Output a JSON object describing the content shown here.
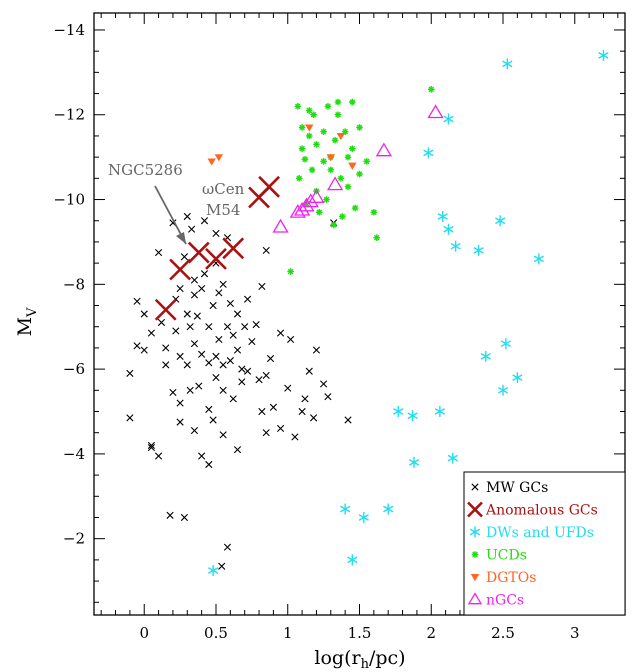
{
  "chart_data": {
    "type": "scatter",
    "xlabel": "log(r_h/pc)",
    "ylabel": "M_V",
    "xlim": [
      -0.35,
      3.35
    ],
    "ylim": [
      -0.2,
      -14.4
    ],
    "xticks": [
      0,
      0.5,
      1,
      1.5,
      2,
      2.5,
      3
    ],
    "xtick_labels": [
      "0",
      "0.5",
      "1",
      "1.5",
      "2",
      "2.5",
      "3"
    ],
    "yticks": [
      -2,
      -4,
      -6,
      -8,
      -10,
      -12,
      -14
    ],
    "ytick_labels": [
      "−2",
      "−4",
      "−6",
      "−8",
      "−10",
      "−12",
      "−14"
    ],
    "legend_position": "bottom-right",
    "colors": {
      "mw": "#000000",
      "anomalous": "#aa1111",
      "dw": "#22ddee",
      "ucd": "#22dd11",
      "dgto": "#ff6622",
      "ngc": "#ee22ee",
      "annotation": "#666666"
    },
    "series": [
      {
        "name": "MW GCs",
        "marker": "x",
        "points": [
          [
            -0.1,
            -4.85
          ],
          [
            -0.1,
            -5.9
          ],
          [
            -0.05,
            -6.55
          ],
          [
            0.0,
            -6.45
          ],
          [
            -0.05,
            -7.6
          ],
          [
            0.0,
            -7.3
          ],
          [
            0.05,
            -4.15
          ],
          [
            0.05,
            -4.2
          ],
          [
            0.05,
            -6.85
          ],
          [
            0.1,
            -3.95
          ],
          [
            0.1,
            -8.75
          ],
          [
            0.12,
            -7.1
          ],
          [
            0.15,
            -6.1
          ],
          [
            0.15,
            -6.5
          ],
          [
            0.18,
            -2.55
          ],
          [
            0.2,
            -5.45
          ],
          [
            0.2,
            -9.45
          ],
          [
            0.22,
            -6.9
          ],
          [
            0.22,
            -7.65
          ],
          [
            0.25,
            -4.75
          ],
          [
            0.25,
            -5.2
          ],
          [
            0.25,
            -6.3
          ],
          [
            0.25,
            -7.9
          ],
          [
            0.28,
            -2.5
          ],
          [
            0.28,
            -8.65
          ],
          [
            0.3,
            -6.1
          ],
          [
            0.3,
            -7.3
          ],
          [
            0.3,
            -9.6
          ],
          [
            0.32,
            -5.5
          ],
          [
            0.32,
            -7.0
          ],
          [
            0.33,
            -9.3
          ],
          [
            0.35,
            -4.55
          ],
          [
            0.35,
            -6.6
          ],
          [
            0.35,
            -7.75
          ],
          [
            0.35,
            -8.1
          ],
          [
            0.37,
            -7.25
          ],
          [
            0.38,
            -5.6
          ],
          [
            0.4,
            -3.95
          ],
          [
            0.4,
            -6.35
          ],
          [
            0.4,
            -7.9
          ],
          [
            0.42,
            -8.25
          ],
          [
            0.42,
            -9.5
          ],
          [
            0.45,
            -3.75
          ],
          [
            0.45,
            -5.05
          ],
          [
            0.45,
            -6.15
          ],
          [
            0.45,
            -7.0
          ],
          [
            0.48,
            -4.8
          ],
          [
            0.48,
            -7.5
          ],
          [
            0.5,
            -5.8
          ],
          [
            0.5,
            -6.3
          ],
          [
            0.5,
            -8.5
          ],
          [
            0.5,
            -9.2
          ],
          [
            0.52,
            -6.7
          ],
          [
            0.52,
            -7.8
          ],
          [
            0.54,
            -1.35
          ],
          [
            0.55,
            -4.45
          ],
          [
            0.55,
            -5.5
          ],
          [
            0.55,
            -6.1
          ],
          [
            0.55,
            -8.0
          ],
          [
            0.58,
            -1.8
          ],
          [
            0.58,
            -7.0
          ],
          [
            0.58,
            -9.1
          ],
          [
            0.6,
            -6.2
          ],
          [
            0.6,
            -7.55
          ],
          [
            0.62,
            -5.3
          ],
          [
            0.62,
            -6.8
          ],
          [
            0.65,
            -4.1
          ],
          [
            0.65,
            -6.45
          ],
          [
            0.65,
            -7.3
          ],
          [
            0.68,
            -5.7
          ],
          [
            0.68,
            -6.0
          ],
          [
            0.7,
            -7.0
          ],
          [
            0.72,
            -5.95
          ],
          [
            0.72,
            -7.65
          ],
          [
            0.75,
            -6.65
          ],
          [
            0.78,
            -7.05
          ],
          [
            0.8,
            -5.75
          ],
          [
            0.82,
            -5.0
          ],
          [
            0.82,
            -7.95
          ],
          [
            0.85,
            -4.5
          ],
          [
            0.85,
            -5.85
          ],
          [
            0.85,
            -8.8
          ],
          [
            0.88,
            -6.25
          ],
          [
            0.9,
            -5.1
          ],
          [
            0.95,
            -4.6
          ],
          [
            0.95,
            -6.85
          ],
          [
            1.0,
            -5.55
          ],
          [
            1.02,
            -6.7
          ],
          [
            1.05,
            -4.4
          ],
          [
            1.1,
            -5.0
          ],
          [
            1.12,
            -5.3
          ],
          [
            1.15,
            -5.95
          ],
          [
            1.18,
            -4.85
          ],
          [
            1.2,
            -6.45
          ],
          [
            1.25,
            -5.65
          ],
          [
            1.28,
            -5.35
          ],
          [
            1.32,
            -9.45
          ],
          [
            1.42,
            -4.8
          ]
        ]
      },
      {
        "name": "Anomalous GCs",
        "marker": "X",
        "points": [
          [
            0.15,
            -7.4
          ],
          [
            0.25,
            -8.35
          ],
          [
            0.38,
            -8.75
          ],
          [
            0.5,
            -8.6
          ],
          [
            0.62,
            -8.85
          ],
          [
            0.8,
            -10.05
          ],
          [
            0.87,
            -10.3
          ]
        ]
      },
      {
        "name": "DWs and UFDs",
        "marker": "star",
        "points": [
          [
            0.48,
            -1.25
          ],
          [
            1.4,
            -2.7
          ],
          [
            1.45,
            -1.5
          ],
          [
            1.53,
            -2.5
          ],
          [
            1.7,
            -2.7
          ],
          [
            1.77,
            -5.0
          ],
          [
            1.87,
            -4.9
          ],
          [
            1.88,
            -3.8
          ],
          [
            1.98,
            -11.1
          ],
          [
            2.06,
            -5.0
          ],
          [
            2.08,
            -9.6
          ],
          [
            2.12,
            -11.9
          ],
          [
            2.12,
            -9.3
          ],
          [
            2.15,
            -3.9
          ],
          [
            2.17,
            -8.9
          ],
          [
            2.33,
            -8.8
          ],
          [
            2.38,
            -6.3
          ],
          [
            2.48,
            -9.5
          ],
          [
            2.5,
            -5.5
          ],
          [
            2.52,
            -6.6
          ],
          [
            2.53,
            -13.2
          ],
          [
            2.6,
            -5.8
          ],
          [
            2.75,
            -8.6
          ],
          [
            3.2,
            -13.4
          ]
        ]
      },
      {
        "name": "UCDs",
        "marker": "dot",
        "points": [
          [
            1.02,
            -8.3
          ],
          [
            1.07,
            -12.2
          ],
          [
            1.08,
            -10.5
          ],
          [
            1.1,
            -11.7
          ],
          [
            1.1,
            -11.2
          ],
          [
            1.12,
            -10.95
          ],
          [
            1.13,
            -9.9
          ],
          [
            1.15,
            -11.5
          ],
          [
            1.15,
            -12.1
          ],
          [
            1.17,
            -10.7
          ],
          [
            1.18,
            -12.0
          ],
          [
            1.2,
            -11.3
          ],
          [
            1.2,
            -10.2
          ],
          [
            1.22,
            -9.7
          ],
          [
            1.25,
            -11.6
          ],
          [
            1.25,
            -10.9
          ],
          [
            1.27,
            -10.0
          ],
          [
            1.28,
            -12.2
          ],
          [
            1.3,
            -11.0
          ],
          [
            1.3,
            -10.7
          ],
          [
            1.32,
            -9.4
          ],
          [
            1.33,
            -11.4
          ],
          [
            1.35,
            -12.3
          ],
          [
            1.35,
            -12.0
          ],
          [
            1.37,
            -10.5
          ],
          [
            1.38,
            -9.6
          ],
          [
            1.4,
            -11.6
          ],
          [
            1.42,
            -11.0
          ],
          [
            1.42,
            -10.3
          ],
          [
            1.45,
            -12.3
          ],
          [
            1.45,
            -11.2
          ],
          [
            1.47,
            -9.8
          ],
          [
            1.5,
            -10.6
          ],
          [
            1.5,
            -11.7
          ],
          [
            1.55,
            -10.9
          ],
          [
            1.6,
            -9.7
          ],
          [
            1.62,
            -9.1
          ],
          [
            2.0,
            -12.6
          ]
        ]
      },
      {
        "name": "DGTOs",
        "marker": "tri-down",
        "points": [
          [
            0.47,
            -10.9
          ],
          [
            0.52,
            -11.0
          ],
          [
            1.15,
            -11.7
          ],
          [
            1.3,
            -11.0
          ],
          [
            1.37,
            -11.5
          ],
          [
            1.45,
            -10.8
          ]
        ]
      },
      {
        "name": "nGCs",
        "marker": "tri-up",
        "points": [
          [
            0.95,
            -9.35
          ],
          [
            1.07,
            -9.7
          ],
          [
            1.1,
            -9.75
          ],
          [
            1.13,
            -9.85
          ],
          [
            1.16,
            -9.95
          ],
          [
            1.2,
            -10.05
          ],
          [
            1.33,
            -10.35
          ],
          [
            1.67,
            -11.15
          ],
          [
            2.03,
            -12.05
          ]
        ]
      }
    ],
    "annotations": {
      "ngc5286": "NGC5286",
      "omega_cen": "ωCen",
      "m54": "M54"
    }
  }
}
